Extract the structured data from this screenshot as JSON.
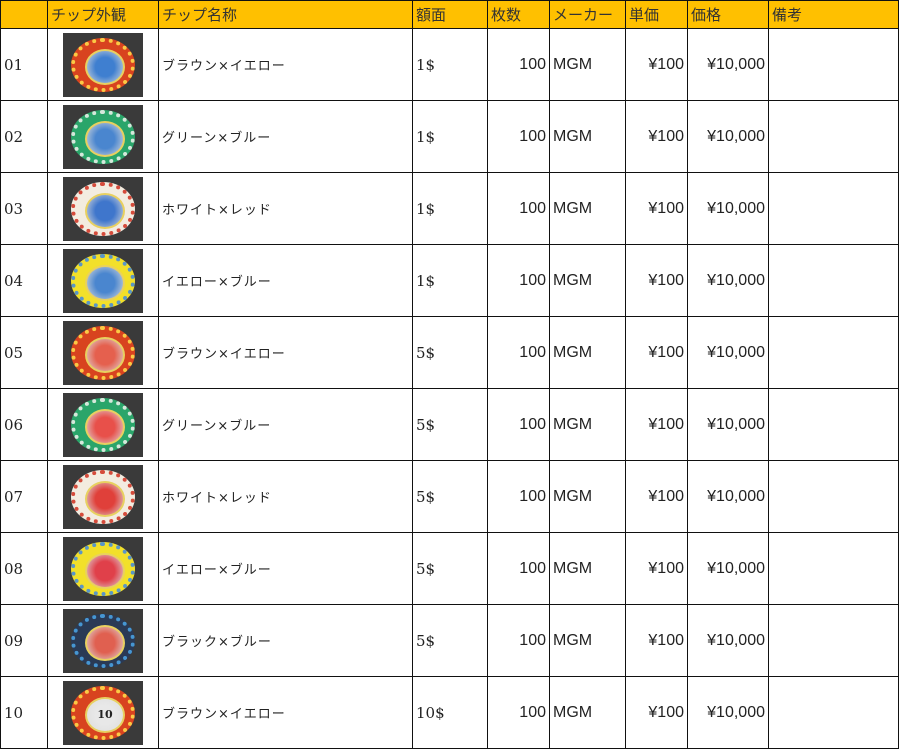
{
  "headers": [
    "",
    "チップ外観",
    "チップ名称",
    "額面",
    "枚数",
    "メーカー",
    "単価",
    "価格",
    "備考"
  ],
  "header_color": "#FFC000",
  "rows": [
    {
      "no": "01",
      "name": "ブラウン×イエロー",
      "face": "1$",
      "count": "100",
      "maker": "MGM",
      "unit": "¥100",
      "price": "¥10,000",
      "note": "",
      "chip": {
        "rim": "#d8431f",
        "dots": "#ffd84a",
        "center": "#3f7fd0",
        "label": ""
      }
    },
    {
      "no": "02",
      "name": "グリーン×ブルー",
      "face": "1$",
      "count": "100",
      "maker": "MGM",
      "unit": "¥100",
      "price": "¥10,000",
      "note": "",
      "chip": {
        "rim": "#2aa56a",
        "dots": "#e8f0e8",
        "center": "#4a86cf",
        "label": ""
      }
    },
    {
      "no": "03",
      "name": "ホワイト×レッド",
      "face": "1$",
      "count": "100",
      "maker": "MGM",
      "unit": "¥100",
      "price": "¥10,000",
      "note": "",
      "chip": {
        "rim": "#f3ece0",
        "dots": "#d23a2a",
        "center": "#3f76cc",
        "label": ""
      }
    },
    {
      "no": "04",
      "name": "イエロー×ブルー",
      "face": "1$",
      "count": "100",
      "maker": "MGM",
      "unit": "¥100",
      "price": "¥10,000",
      "note": "",
      "chip": {
        "rim": "#f2e02a",
        "dots": "#4a8fd8",
        "center": "#4a86cf",
        "label": ""
      }
    },
    {
      "no": "05",
      "name": "ブラウン×イエロー",
      "face": "5$",
      "count": "100",
      "maker": "MGM",
      "unit": "¥100",
      "price": "¥10,000",
      "note": "",
      "chip": {
        "rim": "#d8431f",
        "dots": "#ffd84a",
        "center": "#e5604e",
        "label": ""
      }
    },
    {
      "no": "06",
      "name": "グリーン×ブルー",
      "face": "5$",
      "count": "100",
      "maker": "MGM",
      "unit": "¥100",
      "price": "¥10,000",
      "note": "",
      "chip": {
        "rim": "#2aa56a",
        "dots": "#e8f0e8",
        "center": "#e8504a",
        "label": ""
      }
    },
    {
      "no": "07",
      "name": "ホワイト×レッド",
      "face": "5$",
      "count": "100",
      "maker": "MGM",
      "unit": "¥100",
      "price": "¥10,000",
      "note": "",
      "chip": {
        "rim": "#f3ece0",
        "dots": "#d23a2a",
        "center": "#e0403a",
        "label": ""
      }
    },
    {
      "no": "08",
      "name": "イエロー×ブルー",
      "face": "5$",
      "count": "100",
      "maker": "MGM",
      "unit": "¥100",
      "price": "¥10,000",
      "note": "",
      "chip": {
        "rim": "#f2e02a",
        "dots": "#4a8fd8",
        "center": "#e0404a",
        "label": ""
      }
    },
    {
      "no": "09",
      "name": "ブラック×ブルー",
      "face": "5$",
      "count": "100",
      "maker": "MGM",
      "unit": "¥100",
      "price": "¥10,000",
      "note": "",
      "chip": {
        "rim": "#2a3a55",
        "dots": "#4aa0e0",
        "center": "#e06050",
        "label": ""
      }
    },
    {
      "no": "10",
      "name": "ブラウン×イエロー",
      "face": "10$",
      "count": "100",
      "maker": "MGM",
      "unit": "¥100",
      "price": "¥10,000",
      "note": "",
      "chip": {
        "rim": "#d8431f",
        "dots": "#ffd84a",
        "center": "#e8e8e8",
        "label": "10"
      }
    }
  ]
}
